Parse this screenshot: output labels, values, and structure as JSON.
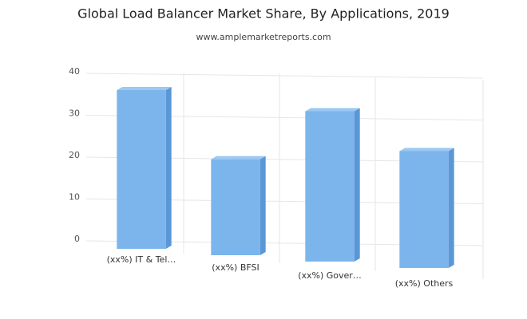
{
  "chart_data": {
    "type": "bar3d",
    "title": "Global Load Balancer Market Share, By Applications, 2019",
    "subtitle": "www.amplemarketreports.com",
    "categories": [
      "(xx%) IT & Tel…",
      "(xx%) BFSI",
      "(xx%) Gover…",
      "(xx%) Others"
    ],
    "values": [
      36,
      21,
      34,
      26
    ],
    "color": "#7cb5ec",
    "ylim": [
      0,
      40
    ],
    "yticks": [
      0,
      10,
      20,
      30,
      40
    ],
    "grid": true
  }
}
